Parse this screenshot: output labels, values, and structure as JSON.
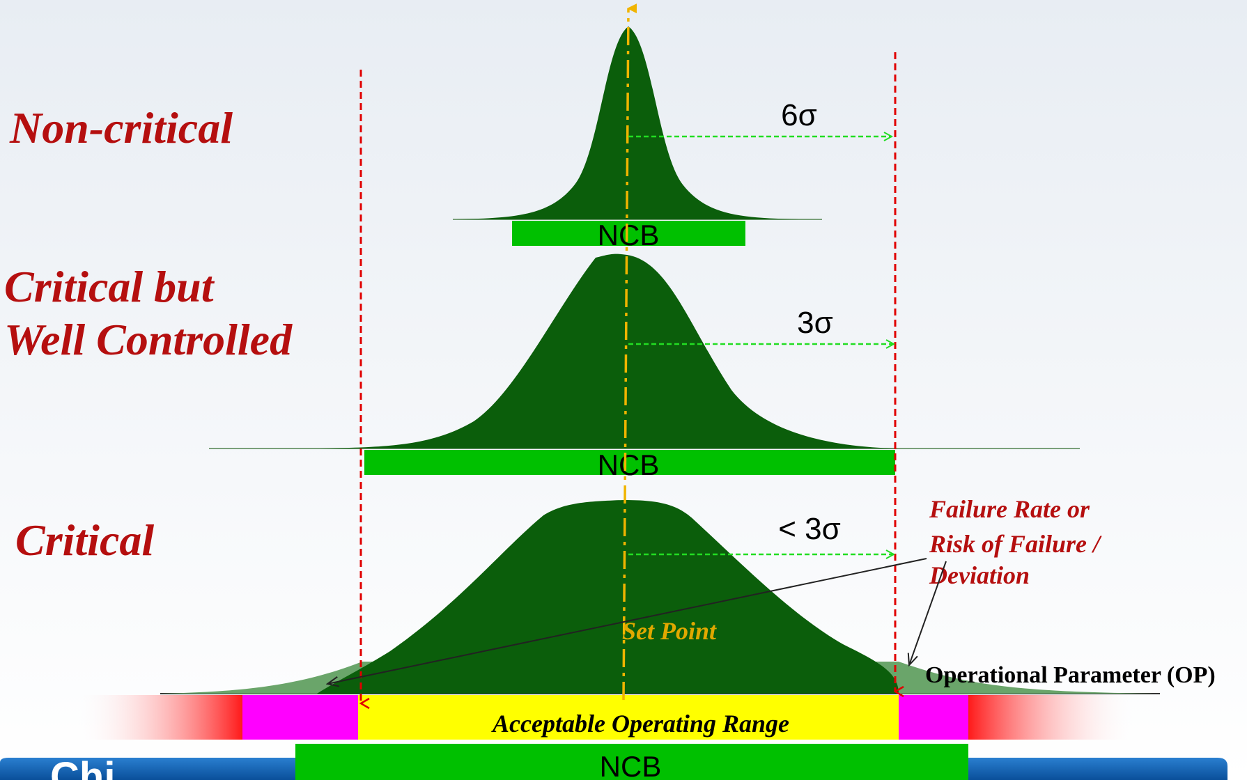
{
  "categories": {
    "non_critical": "Non-critical",
    "critical_well_line1": "Critical but",
    "critical_well_line2": "Well Controlled",
    "critical": "Critical"
  },
  "sigma": {
    "six": "6σ",
    "three": "3σ",
    "less_than_three": "< 3σ"
  },
  "ncb_label": "NCB",
  "failure_annotation": {
    "line1": "Failure Rate or",
    "line2": "Risk of Failure /",
    "line3": "Deviation"
  },
  "set_point": "Set Point",
  "operational_parameter": "Operational Parameter (OP)",
  "acceptable_range": "Acceptable Operating Range",
  "colors": {
    "curve": "#0b5e0b",
    "tail": "#6aa56a",
    "ncb": "#00c000",
    "limit_line": "#e00000",
    "set_point_line": "#f0b400",
    "sigma_arrow": "#22dd22",
    "acceptable": "#ffff00",
    "edge_zone": "#ff00ff",
    "failure_zone": "#ff2222",
    "label_red": "#b50f0f",
    "footer": "#1060b0"
  }
}
